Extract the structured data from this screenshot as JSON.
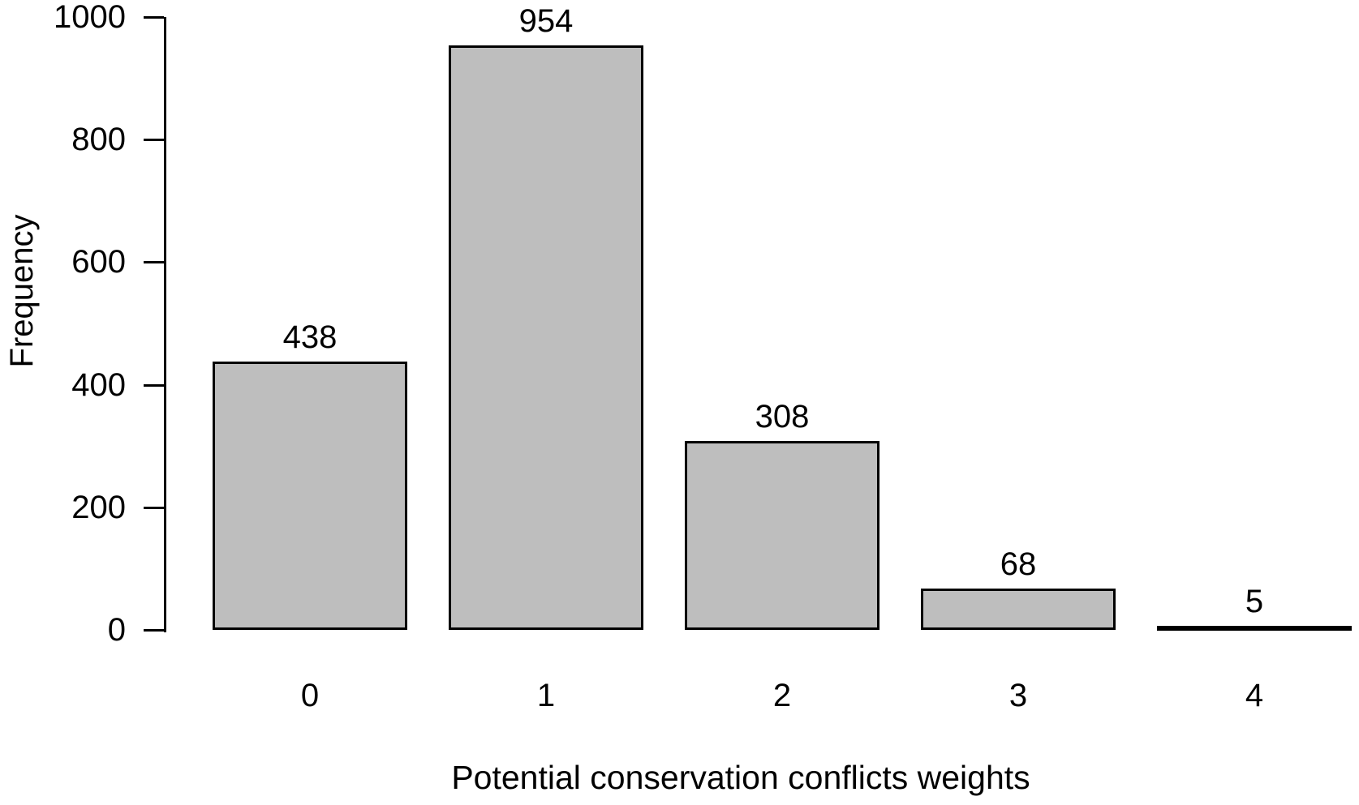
{
  "chart_data": {
    "type": "bar",
    "title": "",
    "xlabel": "Potential conservation conflicts weights",
    "ylabel": "Frequency",
    "categories": [
      "0",
      "1",
      "2",
      "3",
      "4"
    ],
    "values": [
      438,
      954,
      308,
      68,
      5
    ],
    "bar_labels": [
      "438",
      "954",
      "308",
      "68",
      "5"
    ],
    "ylim": [
      0,
      1000
    ],
    "yticks": [
      0,
      200,
      400,
      600,
      800,
      1000
    ],
    "ytick_labels": [
      "0",
      "200",
      "400",
      "600",
      "800",
      "1000"
    ],
    "grid": false,
    "legend": null,
    "colors": {
      "bar_fill": "#bebebe",
      "bar_border": "#000000",
      "axis": "#000000",
      "text": "#000000",
      "background": "#ffffff"
    }
  }
}
